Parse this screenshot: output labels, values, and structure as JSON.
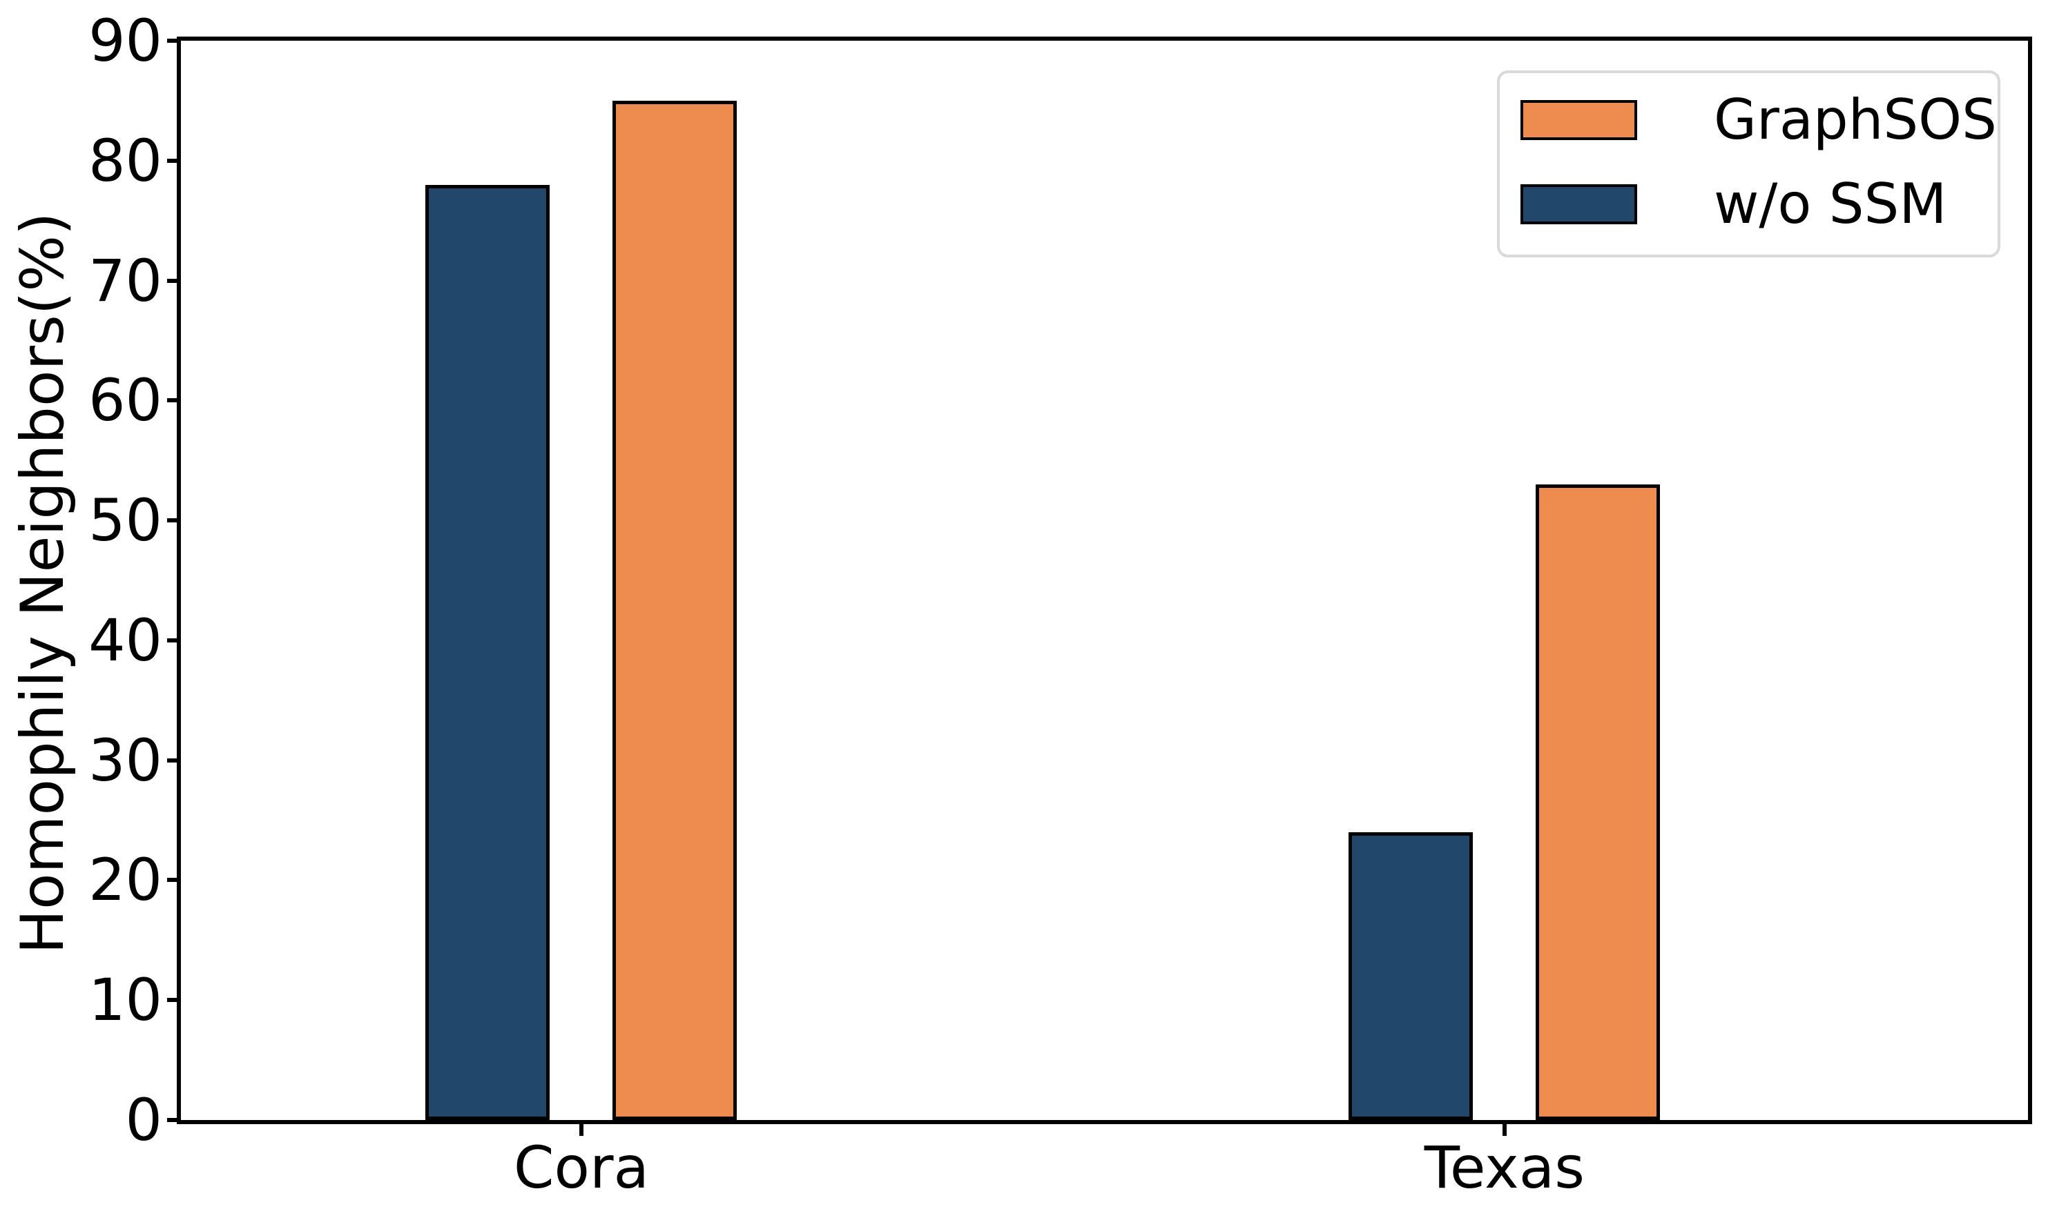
{
  "chart_data": {
    "type": "bar",
    "title": "",
    "xlabel": "",
    "ylabel": "Homophily Neighbors(%)",
    "categories": [
      "Cora",
      "Texas"
    ],
    "series": [
      {
        "name": "w/o SSM",
        "values": [
          78,
          24
        ],
        "color": "#21486B",
        "position_in_group": 0
      },
      {
        "name": "GraphSOS",
        "values": [
          85,
          53
        ],
        "color": "#ED8C4E",
        "position_in_group": 1
      }
    ],
    "legend_order": [
      "GraphSOS",
      "w/o SSM"
    ],
    "legend_position": "upper right",
    "ylim": [
      0,
      90
    ],
    "yticks": [
      0,
      10,
      20,
      30,
      40,
      50,
      60,
      70,
      80,
      90
    ],
    "grid": false,
    "bar_edge_color": "#000000",
    "layout": {
      "group_center_fracs": [
        0.2168,
        0.7166
      ],
      "bar_width_frac": 0.0673,
      "bar_half_gap_frac": 0.017
    }
  }
}
